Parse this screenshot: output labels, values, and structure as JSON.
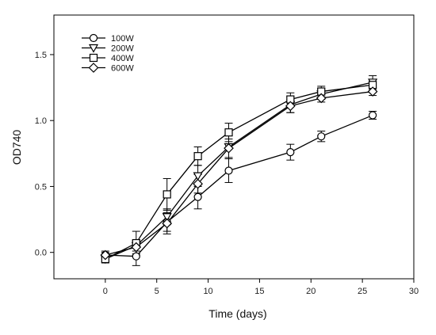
{
  "chart_data": {
    "type": "line",
    "title": "",
    "xlabel": "Time (days)",
    "ylabel": "OD740",
    "xlim": [
      -5,
      30
    ],
    "ylim": [
      -0.2,
      1.8
    ],
    "xticks": [
      0,
      5,
      10,
      15,
      20,
      25,
      30
    ],
    "yticks": [
      0.0,
      0.5,
      1.0,
      1.5
    ],
    "ytick_labels": [
      "0.0",
      "0.5",
      "1.0",
      "1.5"
    ],
    "grid": false,
    "legend_position": "top-left",
    "x": [
      0,
      3,
      6,
      9,
      12,
      18,
      21,
      26
    ],
    "series": [
      {
        "name": "100W",
        "marker": "circle",
        "values": [
          -0.02,
          -0.03,
          0.23,
          0.42,
          0.62,
          0.76,
          0.88,
          1.04
        ],
        "errors": [
          0.03,
          0.07,
          0.07,
          0.09,
          0.09,
          0.06,
          0.04,
          0.03
        ]
      },
      {
        "name": "200W",
        "marker": "triangle-down",
        "values": [
          -0.05,
          0.05,
          0.27,
          0.58,
          0.8,
          1.12,
          1.2,
          1.29
        ],
        "errors": [
          0.02,
          0.04,
          0.06,
          0.08,
          0.09,
          0.06,
          0.04,
          0.05
        ]
      },
      {
        "name": "400W",
        "marker": "square",
        "values": [
          -0.05,
          0.07,
          0.44,
          0.73,
          0.91,
          1.16,
          1.22,
          1.27
        ],
        "errors": [
          0.03,
          0.09,
          0.12,
          0.07,
          0.07,
          0.05,
          0.04,
          0.04
        ]
      },
      {
        "name": "600W",
        "marker": "diamond",
        "values": [
          -0.02,
          0.04,
          0.22,
          0.52,
          0.79,
          1.11,
          1.17,
          1.22
        ],
        "errors": [
          0.02,
          0.05,
          0.08,
          0.07,
          0.07,
          0.05,
          0.03,
          0.03
        ]
      }
    ]
  }
}
